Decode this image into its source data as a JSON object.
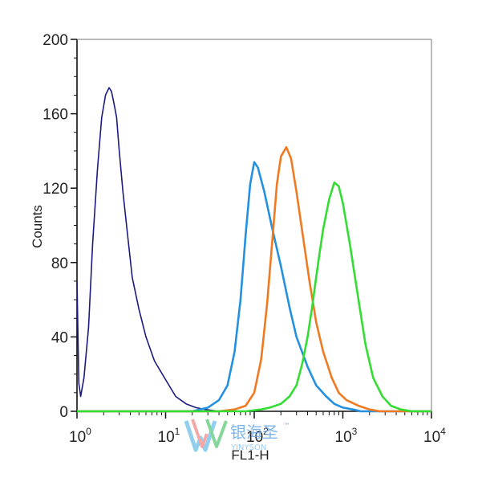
{
  "chart_data": {
    "type": "line",
    "title": "",
    "xlabel": "FL1-H",
    "ylabel": "Counts",
    "x_scale": "log",
    "xlim": [
      1,
      10000
    ],
    "ylim": [
      0,
      200
    ],
    "grid": false,
    "x_tick_labels": [
      {
        "base": "10",
        "exp": "0"
      },
      {
        "base": "10",
        "exp": "1"
      },
      {
        "base": "10",
        "exp": "2"
      },
      {
        "base": "10",
        "exp": "3"
      },
      {
        "base": "10",
        "exp": "4"
      }
    ],
    "y_ticks": [
      0,
      40,
      80,
      120,
      160,
      200
    ],
    "y_tick_labels": [
      "0",
      "40",
      "80",
      "120",
      "160",
      "200"
    ],
    "series": [
      {
        "color": "#1a1a80",
        "x": [
          1,
          1.05,
          1.1,
          1.2,
          1.35,
          1.5,
          1.7,
          1.9,
          2.1,
          2.3,
          2.45,
          2.6,
          2.8,
          3.0,
          3.3,
          3.7,
          4.2,
          5.0,
          6.0,
          7.5,
          10,
          13,
          17,
          22,
          28,
          40,
          60,
          100
        ],
        "y": [
          70,
          15,
          8,
          18,
          45,
          90,
          130,
          158,
          170,
          174,
          172,
          166,
          158,
          140,
          118,
          96,
          72,
          55,
          40,
          27,
          17,
          8,
          4,
          2,
          1,
          0,
          0,
          0
        ]
      },
      {
        "color": "#2490e0",
        "x": [
          1,
          10,
          20,
          30,
          40,
          50,
          60,
          70,
          80,
          90,
          100,
          110,
          130,
          160,
          200,
          250,
          300,
          400,
          500,
          650,
          800,
          1000,
          1300,
          1600,
          10000
        ],
        "y": [
          0,
          0,
          0,
          2,
          6,
          14,
          32,
          60,
          95,
          122,
          134,
          131,
          118,
          98,
          78,
          56,
          40,
          24,
          14,
          8,
          4,
          2,
          1,
          0,
          0
        ]
      },
      {
        "color": "#f07a22",
        "x": [
          1,
          20,
          40,
          60,
          80,
          100,
          120,
          140,
          160,
          180,
          200,
          230,
          260,
          300,
          350,
          420,
          500,
          600,
          750,
          900,
          1100,
          1500,
          2000,
          2600,
          10000
        ],
        "y": [
          0,
          0,
          0,
          1,
          3,
          10,
          28,
          58,
          92,
          122,
          137,
          142,
          136,
          118,
          96,
          70,
          48,
          32,
          18,
          10,
          6,
          3,
          1,
          0,
          0
        ]
      },
      {
        "color": "#33dd33",
        "x": [
          1,
          40,
          80,
          120,
          150,
          200,
          250,
          300,
          350,
          400,
          450,
          500,
          550,
          600,
          700,
          800,
          900,
          1000,
          1200,
          1500,
          1800,
          2200,
          2800,
          3500,
          4500,
          6000,
          10000
        ],
        "y": [
          0,
          0,
          0,
          1,
          2,
          4,
          8,
          14,
          26,
          40,
          56,
          72,
          86,
          98,
          114,
          123,
          121,
          112,
          90,
          60,
          36,
          18,
          8,
          3,
          1,
          0,
          0
        ]
      }
    ]
  },
  "watermark": {
    "line1": "银海圣",
    "tm": "™",
    "line2": "YINYSON"
  }
}
